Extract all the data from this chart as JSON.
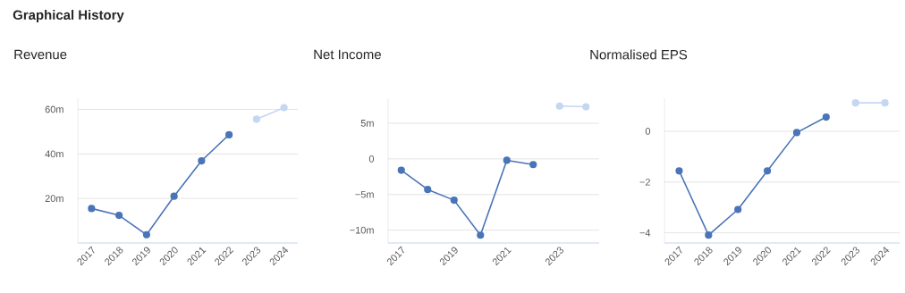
{
  "chart_data": [
    {
      "type": "other",
      "title": "Graphical History"
    },
    {
      "type": "line",
      "title": "Revenue",
      "categories": [
        "2017",
        "2018",
        "2019",
        "2020",
        "2021",
        "2022",
        "2023",
        "2024"
      ],
      "series": [
        {
          "color": "#4a74b8",
          "values": [
            15.5,
            12.4,
            3.7,
            21,
            36.9,
            48.6,
            null,
            null
          ]
        },
        {
          "color": "#c5d6f2",
          "values": [
            null,
            null,
            null,
            null,
            null,
            null,
            55.6,
            60.8
          ]
        }
      ],
      "ylim": [
        0,
        65
      ],
      "yticks": [
        {
          "value": 20,
          "label": "20m"
        },
        {
          "value": 40,
          "label": "40m"
        },
        {
          "value": 60,
          "label": "60m"
        }
      ],
      "grid": "y",
      "marker": "circle",
      "line_style": "solid"
    },
    {
      "type": "line",
      "title": "Net Income",
      "categories": [
        "2017",
        null,
        "2019",
        null,
        "2021",
        null,
        "2023",
        null
      ],
      "series": [
        {
          "color": "#4a74b8",
          "values": [
            -1.6,
            -4.3,
            -5.8,
            -10.7,
            -0.2,
            -0.8,
            null,
            null
          ]
        },
        {
          "color": "#c5d6f2",
          "values": [
            null,
            null,
            null,
            null,
            null,
            null,
            7.4,
            7.3
          ]
        }
      ],
      "ylim": [
        -11.8,
        8.5
      ],
      "yticks": [
        {
          "value": -10,
          "label": "−10m"
        },
        {
          "value": -5,
          "label": "−5m"
        },
        0,
        {
          "value": 5,
          "label": "5m"
        }
      ],
      "grid": "y",
      "marker": "circle",
      "line_style": "solid"
    },
    {
      "type": "line",
      "title": "Normalised EPS",
      "categories": [
        "2017",
        "2018",
        "2019",
        "2020",
        "2021",
        "2022",
        "2023",
        "2024"
      ],
      "series": [
        {
          "color": "#4a74b8",
          "values": [
            -1.56,
            -4.09,
            -3.08,
            -1.56,
            -0.05,
            0.56,
            null,
            null
          ]
        },
        {
          "color": "#c5d6f2",
          "values": [
            null,
            null,
            null,
            null,
            null,
            null,
            1.12,
            1.12
          ]
        }
      ],
      "ylim": [
        -4.4,
        1.3
      ],
      "yticks": [
        {
          "value": -4,
          "label": "−4"
        },
        {
          "value": -2,
          "label": "−2"
        },
        0
      ],
      "grid": "y",
      "marker": "circle",
      "line_style": "solid"
    }
  ]
}
